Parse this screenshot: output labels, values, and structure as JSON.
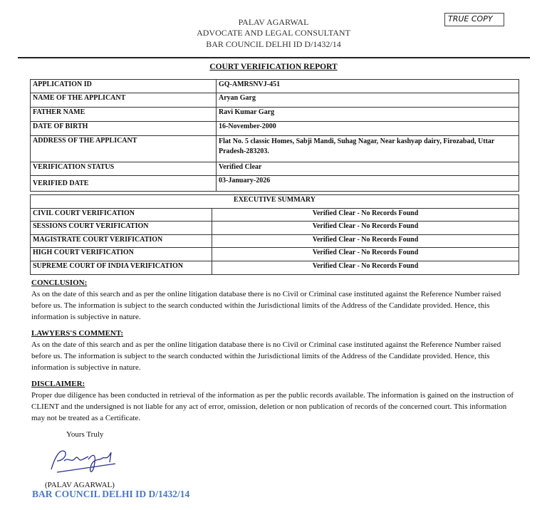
{
  "header": {
    "name": "PALAV AGARWAL",
    "designation": "ADVOCATE AND LEGAL CONSULTANT",
    "bar_id": "BAR COUNCIL DELHI ID D/1432/14",
    "true_copy": "TRUE COPY"
  },
  "report_title": "COURT VERIFICATION REPORT",
  "details": [
    {
      "label": "APPLICATION ID",
      "value": "GQ-AMRSNVJ-451"
    },
    {
      "label": "NAME OF THE APPLICANT",
      "value": "Aryan Garg"
    },
    {
      "label": "FATHER NAME",
      "value": "Ravi Kumar Garg"
    },
    {
      "label": "DATE OF BIRTH",
      "value": "16-November-2000"
    },
    {
      "label": "ADDRESS OF THE APPLICANT",
      "value": "Flat No. 5 classic Homes, Sabji Mandi, Suhag Nagar, Near kashyap dairy, Firozabad, Uttar Pradesh-283203."
    },
    {
      "label": "VERIFICATION STATUS",
      "value": "Verified Clear"
    },
    {
      "label": "VERIFIED DATE",
      "value": "03-January-2026"
    }
  ],
  "summary": {
    "title": "EXECUTIVE SUMMARY",
    "rows": [
      {
        "label": "CIVIL COURT VERIFICATION",
        "value": "Verified Clear - No Records Found"
      },
      {
        "label": "SESSIONS COURT VERIFICATION",
        "value": "Verified Clear - No Records Found"
      },
      {
        "label": "MAGISTRATE COURT VERIFICATION",
        "value": "Verified Clear - No Records Found"
      },
      {
        "label": "HIGH COURT VERIFICATION",
        "value": "Verified Clear - No Records Found"
      },
      {
        "label": "SUPREME COURT OF INDIA VERIFICATION",
        "value": "Verified Clear - No Records Found"
      }
    ]
  },
  "conclusion": {
    "heading": "CONCLUSION:",
    "text": "As on the date of this search and as per the online litigation database there is no Civil or Criminal case instituted against the Reference Number raised before us. The information is subject to the search conducted within the Jurisdictional limits of the Address of the Candidate provided. Hence, this information is subjective in nature."
  },
  "lawyers_comment": {
    "heading": "LAWYERS'S COMMENT:",
    "text": "As on the date of this search and as per the online litigation database there is no Civil or Criminal case instituted against the Reference Number raised before us. The information is subject to the search conducted within the Jurisdictional limits of the Address of the Candidate provided. Hence, this information is subjective in nature."
  },
  "disclaimer": {
    "heading": "DISCLAIMER:",
    "text": "Proper due diligence has been conducted in retrieval of the information as per the public records available. The information is gained on the instruction of CLIENT and the undersigned is not liable for any act of error, omission, deletion or non publication of records of the concerned court. This information may not be treated as a Certificate."
  },
  "signoff": {
    "closing": "Yours Truly",
    "signature_text": "Palav Agarwal",
    "name": "(PALAV AGARWAL)",
    "bar_id": "BAR COUNCIL DELHI ID D/1432/14",
    "bar_id_color": "#4a78c2"
  }
}
